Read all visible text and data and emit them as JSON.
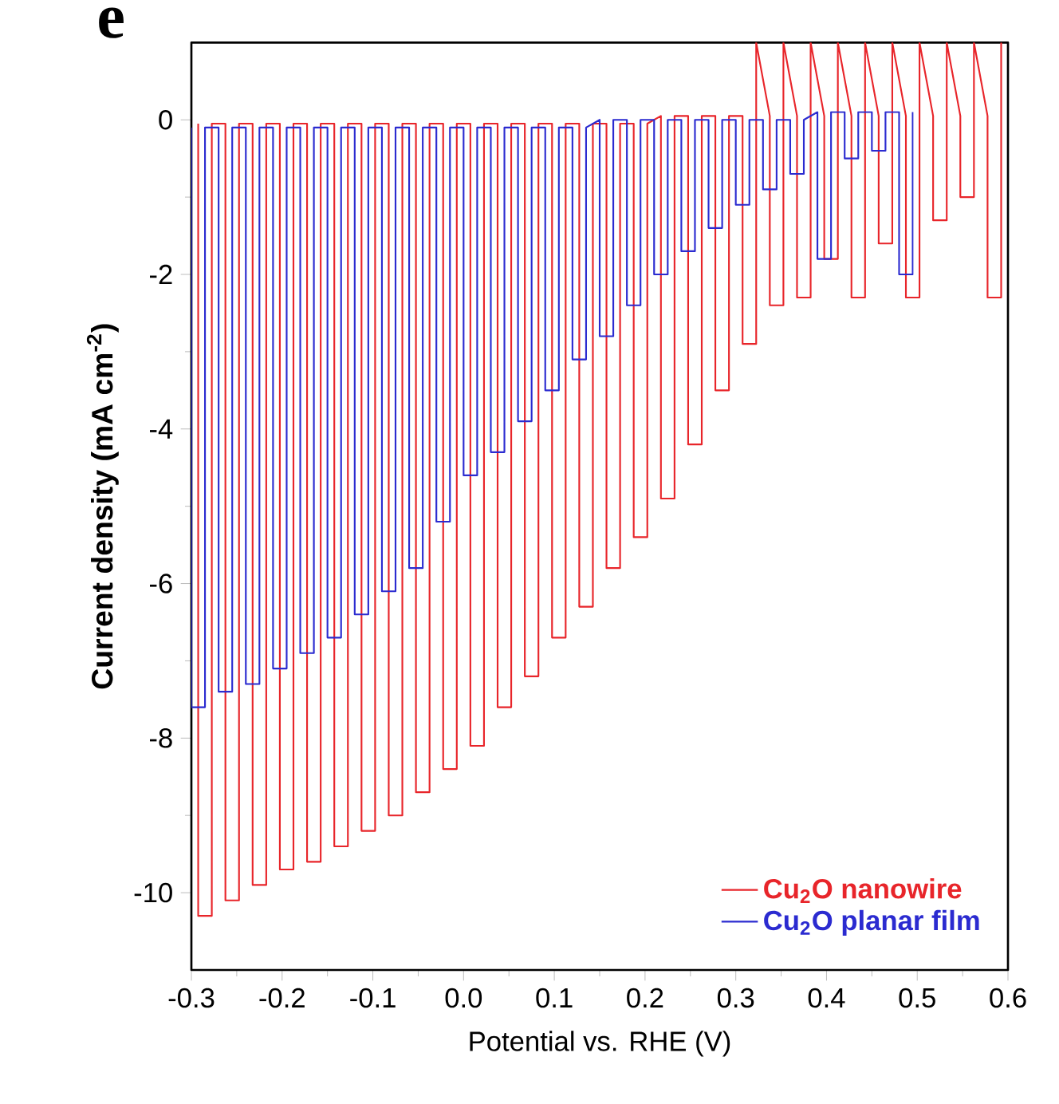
{
  "chart_data": {
    "type": "line",
    "xlabel": "Potential vs. RHE (V)",
    "ylabel": "Current density (mA cm$^{-2}$)",
    "annotations": [
      "e"
    ],
    "xlim": [
      -0.3,
      0.6
    ],
    "ylim": [
      -11,
      1
    ],
    "xticks": [
      -0.3,
      -0.2,
      -0.1,
      {
        "value": 0,
        "label": "0.0"
      },
      0.1,
      0.2,
      0.3,
      0.4,
      0.5,
      0.6
    ],
    "yticks": [
      -10,
      -8,
      -6,
      -4,
      -2,
      0
    ],
    "legend": "bottom right",
    "marker": "none",
    "line_style": "solid",
    "series": [
      {
        "name": "Cu$_{2}$O nanowire",
        "color": "#e8252a",
        "x": [
          -0.2925,
          -0.2925,
          -0.2775,
          -0.2775,
          -0.2625,
          -0.2625,
          -0.2475,
          -0.2475,
          -0.2325,
          -0.2325,
          -0.2175,
          -0.2175,
          -0.2025,
          -0.2025,
          -0.1875,
          -0.1875,
          -0.1725,
          -0.1725,
          -0.1575,
          -0.1575,
          -0.1425,
          -0.1425,
          -0.1275,
          -0.1275,
          -0.1125,
          -0.1125,
          -0.0975,
          -0.0975,
          -0.0825,
          -0.0825,
          -0.0675,
          -0.0675,
          -0.0525,
          -0.0525,
          -0.0375,
          -0.0375,
          -0.0225,
          -0.0225,
          -0.0075,
          -0.0075,
          0.0075,
          0.0075,
          0.0225,
          0.0225,
          0.0375,
          0.0375,
          0.0525,
          0.0525,
          0.0675,
          0.0675,
          0.0825,
          0.0825,
          0.0975,
          0.0975,
          0.1125,
          0.1125,
          0.1275,
          0.1275,
          0.1425,
          0.1425,
          0.1575,
          0.1575,
          0.1725,
          0.1725,
          0.1875,
          0.1875,
          0.2025,
          0.2025,
          0.2175,
          0.2175,
          0.2325,
          0.2325,
          0.2475,
          0.2475,
          0.2625,
          0.2625,
          0.2775,
          0.2775,
          0.2925,
          0.2925,
          0.3075,
          0.3075,
          0.3225,
          0.3225,
          0.3375,
          0.3375,
          0.3525,
          0.3525,
          0.3675,
          0.3675,
          0.3825,
          0.3825,
          0.3975,
          0.3975,
          0.4125,
          0.4125,
          0.4275,
          0.4275,
          0.4425,
          0.4425,
          0.4575,
          0.4575,
          0.4725,
          0.4725,
          0.4875,
          0.4875,
          0.5025,
          0.5025,
          0.5175,
          0.5175,
          0.5325,
          0.5325,
          0.5475,
          0.5475,
          0.5625,
          0.5625,
          0.5775,
          0.5775,
          0.5925,
          0.5925
        ],
        "values": [
          -0.05,
          -10.3,
          -10.3,
          -0.05,
          -0.05,
          -10.1,
          -10.1,
          -0.05,
          -0.05,
          -9.9,
          -9.9,
          -0.05,
          -0.05,
          -9.7,
          -9.7,
          -0.05,
          -0.05,
          -9.6,
          -9.6,
          -0.05,
          -0.05,
          -9.4,
          -9.4,
          -0.05,
          -0.05,
          -9.2,
          -9.2,
          -0.05,
          -0.05,
          -9.0,
          -9.0,
          -0.05,
          -0.05,
          -8.7,
          -8.7,
          -0.05,
          -0.05,
          -8.4,
          -8.4,
          -0.05,
          -0.05,
          -8.1,
          -8.1,
          -0.05,
          -0.05,
          -7.6,
          -7.6,
          -0.05,
          -0.05,
          -7.2,
          -7.2,
          -0.05,
          -0.05,
          -6.7,
          -6.7,
          -0.05,
          -0.05,
          -6.3,
          -6.3,
          -0.05,
          -0.05,
          -5.8,
          -5.8,
          -0.05,
          -0.05,
          -5.4,
          -5.4,
          -0.05,
          0.05,
          -4.9,
          -4.9,
          0.05,
          0.05,
          -4.2,
          -4.2,
          0.05,
          0.05,
          -3.5,
          -3.5,
          0.05,
          0.05,
          -2.9,
          -2.9,
          1,
          0.05,
          -2.4,
          -2.4,
          1,
          0.05,
          -2.3,
          -2.3,
          1,
          0.05,
          -1.8,
          -1.8,
          1,
          0.05,
          -2.3,
          -2.3,
          1,
          0.05,
          -1.6,
          -1.6,
          1,
          0.05,
          -2.3,
          -2.3,
          1,
          0.05,
          -1.3,
          -1.3,
          1,
          0.05,
          -1.0,
          -1.0,
          1,
          0.05,
          -2.3,
          -2.3,
          1
        ]
      },
      {
        "name": "Cu$_{2}$O planar film",
        "color": "#2b2bd0",
        "x": [
          -0.3,
          -0.3,
          -0.285,
          -0.285,
          -0.27,
          -0.27,
          -0.255,
          -0.255,
          -0.24,
          -0.24,
          -0.225,
          -0.225,
          -0.21,
          -0.21,
          -0.195,
          -0.195,
          -0.18,
          -0.18,
          -0.165,
          -0.165,
          -0.15,
          -0.15,
          -0.135,
          -0.135,
          -0.12,
          -0.12,
          -0.105,
          -0.105,
          -0.09,
          -0.09,
          -0.075,
          -0.075,
          -0.06,
          -0.06,
          -0.045,
          -0.045,
          -0.03,
          -0.03,
          -0.015,
          -0.015,
          0.0,
          0.0,
          0.015,
          0.015,
          0.03,
          0.03,
          0.045,
          0.045,
          0.06,
          0.06,
          0.075,
          0.075,
          0.09,
          0.09,
          0.105,
          0.105,
          0.12,
          0.12,
          0.135,
          0.135,
          0.15,
          0.15,
          0.165,
          0.165,
          0.18,
          0.18,
          0.195,
          0.195,
          0.21,
          0.21,
          0.225,
          0.225,
          0.24,
          0.24,
          0.255,
          0.255,
          0.27,
          0.27,
          0.285,
          0.285,
          0.3,
          0.3,
          0.315,
          0.315,
          0.33,
          0.33,
          0.345,
          0.345,
          0.36,
          0.36,
          0.375,
          0.375,
          0.39,
          0.39,
          0.405,
          0.405,
          0.42,
          0.42,
          0.435,
          0.435,
          0.45,
          0.45,
          0.465,
          0.465,
          0.48,
          0.48,
          0.495,
          0.495
        ],
        "values": [
          -0.1,
          -7.6,
          -7.6,
          -0.1,
          -0.1,
          -7.4,
          -7.4,
          -0.1,
          -0.1,
          -7.3,
          -7.3,
          -0.1,
          -0.1,
          -7.1,
          -7.1,
          -0.1,
          -0.1,
          -6.9,
          -6.9,
          -0.1,
          -0.1,
          -6.7,
          -6.7,
          -0.1,
          -0.1,
          -6.4,
          -6.4,
          -0.1,
          -0.1,
          -6.1,
          -6.1,
          -0.1,
          -0.1,
          -5.8,
          -5.8,
          -0.1,
          -0.1,
          -5.2,
          -5.2,
          -0.1,
          -0.1,
          -4.6,
          -4.6,
          -0.1,
          -0.1,
          -4.3,
          -4.3,
          -0.1,
          -0.1,
          -3.9,
          -3.9,
          -0.1,
          -0.1,
          -3.5,
          -3.5,
          -0.1,
          -0.1,
          -3.1,
          -3.1,
          -0.1,
          0,
          -2.8,
          -2.8,
          0,
          0,
          -2.4,
          -2.4,
          0,
          0,
          -2.0,
          -2.0,
          0,
          0,
          -1.7,
          -1.7,
          0,
          0,
          -1.4,
          -1.4,
          0,
          0,
          -1.1,
          -1.1,
          0,
          0,
          -0.9,
          -0.9,
          0,
          0,
          -0.7,
          -0.7,
          0,
          0.1,
          -1.8,
          -1.8,
          0.1,
          0.1,
          -0.5,
          -0.5,
          0.1,
          0.1,
          -0.4,
          -0.4,
          0.1,
          0.1,
          -2.0,
          -2.0,
          0.1
        ]
      }
    ]
  }
}
